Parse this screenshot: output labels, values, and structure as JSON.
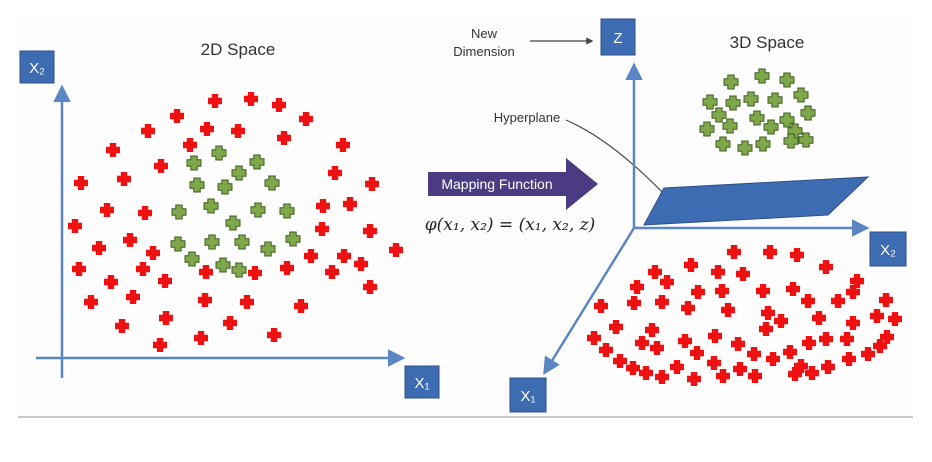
{
  "left_panel": {
    "title": "2D Space",
    "axis_y_label": "X₂",
    "axis_x_label": "X₁"
  },
  "middle": {
    "mapping_label": "Mapping Function",
    "formula": "φ(x₁, x₂) = (x₁, x₂, z)",
    "new_dimension_line1": "New",
    "new_dimension_line2": "Dimension",
    "hyperplane_label": "Hyperplane"
  },
  "right_panel": {
    "title": "3D Space",
    "axis_z_label": "Z",
    "axis_x2_label": "X₂",
    "axis_x1_label": "X₁"
  },
  "colors": {
    "axis": "#5b86c4",
    "label_box": "#3e6cb3",
    "red_class": "#ee1111",
    "green_class": "#7fa84a",
    "arrow": "#4b3b82",
    "hyperplane": "#3e6cb3"
  },
  "points": {
    "left_red": [
      [
        215,
        101
      ],
      [
        251,
        99
      ],
      [
        279,
        105
      ],
      [
        306,
        119
      ],
      [
        177,
        116
      ],
      [
        207,
        129
      ],
      [
        238,
        131
      ],
      [
        148,
        131
      ],
      [
        190,
        145
      ],
      [
        284,
        138
      ],
      [
        343,
        145
      ],
      [
        113,
        150
      ],
      [
        161,
        166
      ],
      [
        335,
        173
      ],
      [
        124,
        179
      ],
      [
        81,
        183
      ],
      [
        372,
        184
      ],
      [
        107,
        210
      ],
      [
        145,
        213
      ],
      [
        323,
        206
      ],
      [
        350,
        204
      ],
      [
        75,
        226
      ],
      [
        130,
        240
      ],
      [
        322,
        229
      ],
      [
        370,
        231
      ],
      [
        99,
        248
      ],
      [
        396,
        250
      ],
      [
        153,
        253
      ],
      [
        311,
        256
      ],
      [
        344,
        256
      ],
      [
        143,
        269
      ],
      [
        287,
        268
      ],
      [
        79,
        269
      ],
      [
        361,
        264
      ],
      [
        206,
        272
      ],
      [
        255,
        273
      ],
      [
        111,
        282
      ],
      [
        332,
        272
      ],
      [
        370,
        287
      ],
      [
        165,
        281
      ],
      [
        133,
        297
      ],
      [
        91,
        302
      ],
      [
        205,
        300
      ],
      [
        247,
        302
      ],
      [
        166,
        318
      ],
      [
        301,
        306
      ],
      [
        230,
        323
      ],
      [
        122,
        326
      ],
      [
        201,
        338
      ],
      [
        274,
        335
      ],
      [
        160,
        345
      ]
    ],
    "left_green": [
      [
        219,
        153
      ],
      [
        257,
        162
      ],
      [
        194,
        163
      ],
      [
        239,
        173
      ],
      [
        197,
        185
      ],
      [
        225,
        187
      ],
      [
        272,
        183
      ],
      [
        179,
        212
      ],
      [
        211,
        206
      ],
      [
        258,
        210
      ],
      [
        287,
        211
      ],
      [
        233,
        223
      ],
      [
        178,
        244
      ],
      [
        212,
        242
      ],
      [
        242,
        242
      ],
      [
        293,
        239
      ],
      [
        268,
        249
      ],
      [
        192,
        259
      ],
      [
        223,
        265
      ],
      [
        239,
        270
      ]
    ],
    "right_green": [
      [
        762,
        76
      ],
      [
        731,
        82
      ],
      [
        787,
        80
      ],
      [
        710,
        102
      ],
      [
        733,
        103
      ],
      [
        751,
        99
      ],
      [
        775,
        100
      ],
      [
        801,
        95
      ],
      [
        719,
        115
      ],
      [
        757,
        118
      ],
      [
        787,
        120
      ],
      [
        808,
        113
      ],
      [
        707,
        129
      ],
      [
        730,
        126
      ],
      [
        771,
        127
      ],
      [
        795,
        131
      ],
      [
        723,
        144
      ],
      [
        745,
        148
      ],
      [
        763,
        144
      ],
      [
        791,
        141
      ],
      [
        806,
        140
      ]
    ],
    "right_red": [
      [
        734,
        252
      ],
      [
        770,
        252
      ],
      [
        797,
        255
      ],
      [
        691,
        265
      ],
      [
        655,
        272
      ],
      [
        718,
        272
      ],
      [
        743,
        274
      ],
      [
        826,
        267
      ],
      [
        667,
        282
      ],
      [
        698,
        292
      ],
      [
        722,
        291
      ],
      [
        763,
        291
      ],
      [
        793,
        289
      ],
      [
        857,
        281
      ],
      [
        637,
        287
      ],
      [
        601,
        306
      ],
      [
        634,
        303
      ],
      [
        662,
        302
      ],
      [
        688,
        308
      ],
      [
        728,
        310
      ],
      [
        768,
        313
      ],
      [
        808,
        301
      ],
      [
        838,
        301
      ],
      [
        853,
        292
      ],
      [
        886,
        300
      ],
      [
        616,
        327
      ],
      [
        652,
        330
      ],
      [
        766,
        329
      ],
      [
        781,
        321
      ],
      [
        819,
        318
      ],
      [
        853,
        323
      ],
      [
        877,
        316
      ],
      [
        895,
        319
      ],
      [
        594,
        338
      ],
      [
        642,
        343
      ],
      [
        685,
        341
      ],
      [
        715,
        336
      ],
      [
        738,
        344
      ],
      [
        809,
        343
      ],
      [
        826,
        339
      ],
      [
        847,
        339
      ],
      [
        887,
        337
      ],
      [
        606,
        350
      ],
      [
        620,
        361
      ],
      [
        657,
        348
      ],
      [
        697,
        353
      ],
      [
        754,
        354
      ],
      [
        790,
        352
      ],
      [
        868,
        354
      ],
      [
        880,
        346
      ],
      [
        633,
        368
      ],
      [
        677,
        367
      ],
      [
        714,
        363
      ],
      [
        740,
        369
      ],
      [
        773,
        359
      ],
      [
        801,
        366
      ],
      [
        828,
        367
      ],
      [
        849,
        359
      ],
      [
        646,
        373
      ],
      [
        662,
        377
      ],
      [
        694,
        379
      ],
      [
        723,
        376
      ],
      [
        755,
        376
      ],
      [
        795,
        374
      ],
      [
        812,
        373
      ]
    ]
  }
}
